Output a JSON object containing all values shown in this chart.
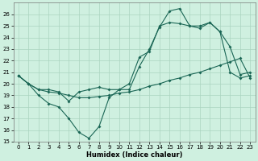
{
  "xlabel": "Humidex (Indice chaleur)",
  "background_color": "#cff0e0",
  "grid_color": "#aad4c0",
  "line_color": "#1a6655",
  "xlim": [
    -0.5,
    23.5
  ],
  "ylim": [
    15,
    27
  ],
  "yticks": [
    15,
    16,
    17,
    18,
    19,
    20,
    21,
    22,
    23,
    24,
    25,
    26
  ],
  "xticks": [
    0,
    1,
    2,
    3,
    4,
    5,
    6,
    7,
    8,
    9,
    10,
    11,
    12,
    13,
    14,
    15,
    16,
    17,
    18,
    19,
    20,
    21,
    22,
    23
  ],
  "line1_x": [
    0,
    1,
    2,
    3,
    4,
    5,
    6,
    7,
    8,
    9,
    10,
    11,
    12,
    13,
    14,
    15,
    16,
    17,
    18,
    19,
    20,
    21,
    22,
    23
  ],
  "line1_y": [
    20.7,
    20.0,
    19.0,
    18.3,
    18.0,
    17.0,
    15.8,
    15.3,
    16.3,
    18.8,
    19.5,
    19.5,
    21.5,
    23.0,
    24.9,
    26.3,
    26.5,
    25.0,
    25.0,
    25.3,
    24.5,
    23.2,
    20.8,
    21.0
  ],
  "line2_x": [
    0,
    1,
    2,
    3,
    4,
    5,
    6,
    7,
    8,
    9,
    10,
    11,
    12,
    13,
    14,
    15,
    16,
    17,
    18,
    19,
    20,
    21,
    22,
    23
  ],
  "line2_y": [
    20.7,
    20.0,
    19.5,
    19.3,
    19.2,
    19.0,
    18.8,
    18.8,
    18.9,
    19.0,
    19.2,
    19.3,
    19.5,
    19.8,
    20.0,
    20.3,
    20.5,
    20.8,
    21.0,
    21.3,
    21.6,
    21.9,
    22.2,
    20.5
  ],
  "line3_x": [
    0,
    1,
    2,
    3,
    4,
    5,
    6,
    7,
    8,
    9,
    10,
    11,
    12,
    13,
    14,
    15,
    16,
    17,
    18,
    19,
    20,
    21,
    22,
    23
  ],
  "line3_y": [
    20.7,
    20.0,
    19.5,
    19.5,
    19.3,
    18.5,
    19.3,
    19.5,
    19.7,
    19.5,
    19.5,
    20.0,
    22.3,
    22.8,
    25.0,
    25.3,
    25.2,
    25.0,
    24.8,
    25.3,
    24.5,
    21.0,
    20.5,
    20.7
  ]
}
